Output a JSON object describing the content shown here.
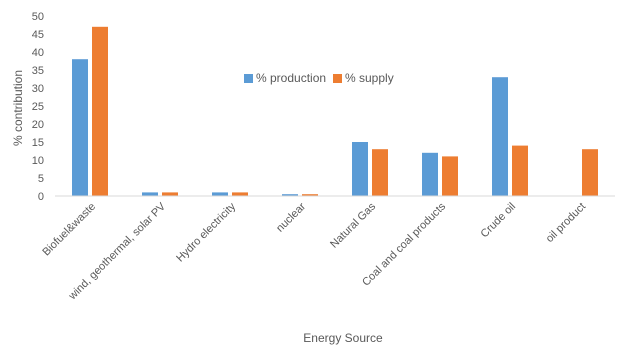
{
  "chart_data": {
    "type": "bar",
    "title": "",
    "xlabel": "Energy Source",
    "ylabel": "% contribution",
    "ylim": [
      0,
      50
    ],
    "yticks": [
      0,
      5,
      10,
      15,
      20,
      25,
      30,
      35,
      40,
      45,
      50
    ],
    "grid": false,
    "legend_position": "top-center",
    "categories": [
      "Biofuel&waste",
      "wind, geothermal, solar PV",
      "Hydro electricity",
      "nuclear",
      "Natural Gas",
      "Coal and coal products",
      "Crude oil",
      "oil product"
    ],
    "series": [
      {
        "name": "% production",
        "color": "#5B9BD5",
        "values": [
          38,
          1,
          1,
          0.5,
          15,
          12,
          33,
          0
        ]
      },
      {
        "name": "% supply",
        "color": "#ED7D31",
        "values": [
          47,
          1,
          1,
          0.5,
          13,
          11,
          14,
          13
        ]
      }
    ]
  }
}
